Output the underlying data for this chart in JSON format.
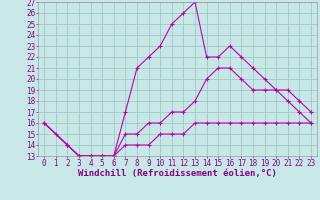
{
  "xlabel": "Windchill (Refroidissement éolien,°C)",
  "xlim": [
    -0.5,
    23.5
  ],
  "ylim": [
    13,
    27
  ],
  "xticks": [
    0,
    1,
    2,
    3,
    4,
    5,
    6,
    7,
    8,
    9,
    10,
    11,
    12,
    13,
    14,
    15,
    16,
    17,
    18,
    19,
    20,
    21,
    22,
    23
  ],
  "yticks": [
    13,
    14,
    15,
    16,
    17,
    18,
    19,
    20,
    21,
    22,
    23,
    24,
    25,
    26,
    27
  ],
  "bg_color": "#c8e8e8",
  "grid_color": "#a0c8c8",
  "line_color": "#bb00aa",
  "line1_x": [
    0,
    1,
    2,
    3,
    4,
    5,
    6,
    7,
    8,
    9,
    10,
    11,
    12,
    13,
    14,
    15,
    16,
    17,
    18,
    19,
    20,
    21,
    22,
    23
  ],
  "line1_y": [
    16,
    15,
    14,
    13,
    13,
    13,
    13,
    17,
    21,
    22,
    23,
    25,
    26,
    27,
    22,
    22,
    23,
    22,
    21,
    20,
    19,
    18,
    17,
    16
  ],
  "line2_x": [
    0,
    2,
    3,
    4,
    5,
    6,
    7,
    8,
    9,
    10,
    11,
    12,
    13,
    14,
    15,
    16,
    17,
    18,
    19,
    20,
    21,
    22,
    23
  ],
  "line2_y": [
    16,
    14,
    13,
    13,
    13,
    13,
    15,
    15,
    16,
    16,
    17,
    17,
    18,
    20,
    21,
    21,
    20,
    19,
    19,
    19,
    19,
    18,
    17
  ],
  "line3_x": [
    0,
    2,
    3,
    4,
    5,
    6,
    7,
    8,
    9,
    10,
    11,
    12,
    13,
    14,
    15,
    16,
    17,
    18,
    19,
    20,
    21,
    22,
    23
  ],
  "line3_y": [
    16,
    14,
    13,
    13,
    13,
    13,
    14,
    14,
    14,
    15,
    15,
    15,
    16,
    16,
    16,
    16,
    16,
    16,
    16,
    16,
    16,
    16,
    16
  ],
  "tick_fontsize": 5.5,
  "label_fontsize": 6.5
}
